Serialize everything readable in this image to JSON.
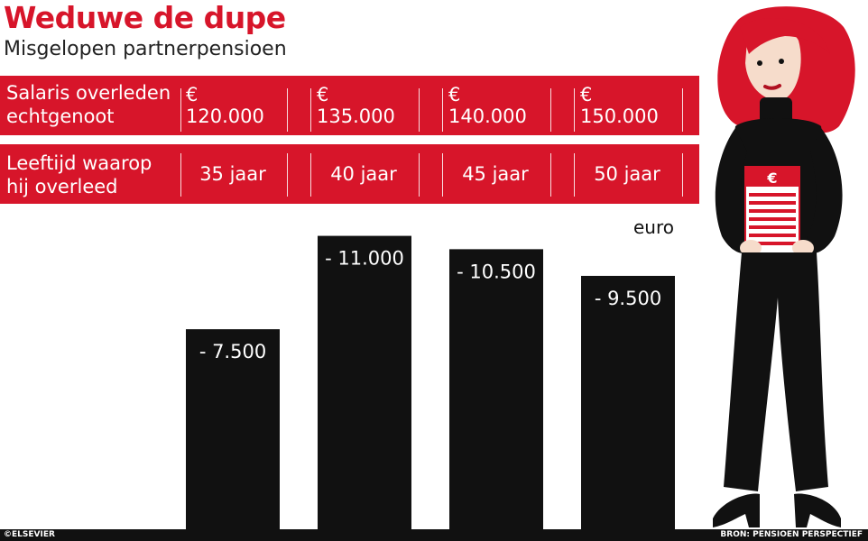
{
  "header": {
    "title": "Weduwe de dupe",
    "subtitle": "Misgelopen partnerpensioen"
  },
  "table": {
    "salary_label": "Salaris overleden\nechtgenoot",
    "salaries": [
      "€ 120.000",
      "€ 135.000",
      "€ 140.000",
      "€ 150.000"
    ],
    "age_label": "Leeftijd waarop\nhij overleed",
    "ages": [
      "35 jaar",
      "40 jaar",
      "45 jaar",
      "50 jaar"
    ]
  },
  "chart_data": {
    "type": "bar",
    "categories": [
      "35 jaar",
      "40 jaar",
      "45 jaar",
      "50 jaar"
    ],
    "values": [
      -7500,
      -11000,
      -10500,
      -9500
    ],
    "value_labels": [
      "- 7.500",
      "- 11.000",
      "- 10.500",
      "- 9.500"
    ],
    "unit": "euro",
    "ylim": [
      -12000,
      0
    ],
    "grid": false,
    "title": "Weduwe de dupe",
    "subtitle": "Misgelopen partnerpensioen"
  },
  "illustration": {
    "badge_symbol": "€"
  },
  "footer": {
    "credit": "©ELSEVIER",
    "source": "BRON: PENSIOEN PERSPECTIEF"
  },
  "colors": {
    "accent": "#d7152a",
    "bar": "#111111"
  }
}
